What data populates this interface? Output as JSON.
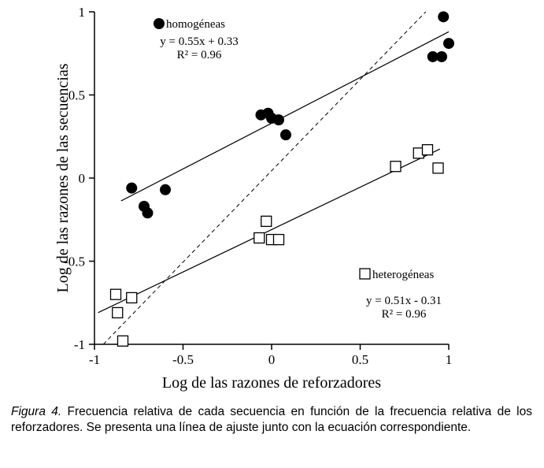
{
  "chart_data": {
    "type": "scatter",
    "title": "",
    "xlabel": "Log de las razones de reforzadores",
    "ylabel": "Log de las razones de las secuencias",
    "xlim": [
      -1,
      1
    ],
    "ylim": [
      -1,
      1
    ],
    "grid": false,
    "xticks": [
      -1,
      -0.5,
      0,
      0.5,
      1
    ],
    "yticks": [
      -1,
      -0.5,
      0,
      0.5,
      1
    ],
    "xtick_labels": [
      "-1",
      "-0.5",
      "0",
      "0.5",
      "1"
    ],
    "ytick_labels": [
      "-1",
      "-0.5",
      "0",
      "0.5",
      "1"
    ],
    "marker_color": "#000000",
    "series": [
      {
        "name": "homogéneas",
        "marker": "filled-circle",
        "equation": "y = 0.55x + 0.33",
        "r2": "R² = 0.96",
        "fit": {
          "slope": 0.55,
          "intercept": 0.33,
          "x_start": -0.85,
          "x_end": 1.0
        },
        "points": [
          [
            -0.79,
            -0.06
          ],
          [
            -0.72,
            -0.17
          ],
          [
            -0.7,
            -0.21
          ],
          [
            -0.6,
            -0.07
          ],
          [
            -0.06,
            0.38
          ],
          [
            -0.02,
            0.39
          ],
          [
            0.0,
            0.36
          ],
          [
            0.04,
            0.35
          ],
          [
            0.08,
            0.26
          ],
          [
            0.91,
            0.73
          ],
          [
            0.96,
            0.73
          ],
          [
            1.0,
            0.81
          ],
          [
            0.97,
            0.97
          ]
        ]
      },
      {
        "name": "heterogéneas",
        "marker": "open-square",
        "equation": "y = 0.51x - 0.31",
        "r2": "R² = 0.96",
        "fit": {
          "slope": 0.51,
          "intercept": -0.31,
          "x_start": -0.98,
          "x_end": 0.95
        },
        "points": [
          [
            -0.84,
            -0.98
          ],
          [
            -0.87,
            -0.81
          ],
          [
            -0.88,
            -0.7
          ],
          [
            -0.79,
            -0.72
          ],
          [
            -0.03,
            -0.26
          ],
          [
            -0.07,
            -0.36
          ],
          [
            0.0,
            -0.37
          ],
          [
            0.04,
            -0.37
          ],
          [
            0.7,
            0.07
          ],
          [
            0.83,
            0.15
          ],
          [
            0.88,
            0.17
          ],
          [
            0.94,
            0.06
          ]
        ]
      }
    ],
    "identity_line": {
      "style": "dashed",
      "x1": -0.95,
      "y1": -1.0,
      "x2": 0.87,
      "y2": 1.0
    }
  },
  "caption": {
    "label": "Figura 4.",
    "text": "Frecuencia relativa de cada secuencia en función de la frecuencia relativa de los reforzadores. Se presenta una línea de ajuste junto con la ecuación correspondiente."
  }
}
